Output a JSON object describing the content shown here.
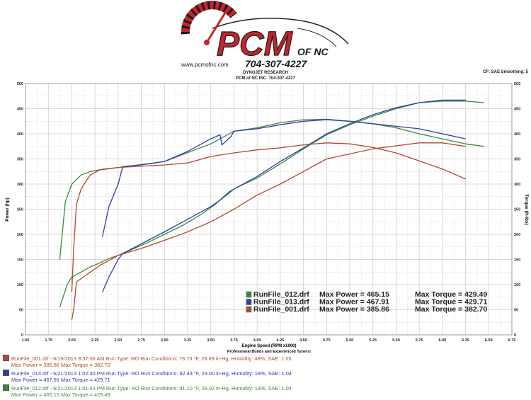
{
  "header": {
    "logo_text": "PCM",
    "logo_suffix": "OF NC",
    "phone": "704-307-4227",
    "website": "www.pcmofnc.com",
    "company": "DYNOJET RESEARCH",
    "subtitle": "PCM of NC INC. 704-307-4227",
    "right_info": "CF: SAE  Smoothing: 5"
  },
  "colors": {
    "run012": "#3a8a3a",
    "run013": "#2a3fa8",
    "run001": "#b5472e",
    "grid": "#cfcfcf",
    "frame": "#999999"
  },
  "chart_data": {
    "type": "line",
    "title": "",
    "xlabel": "Engine Speed (RPM x1000)",
    "ylabel_left": "Power (hp)",
    "ylabel_right": "Torque (ft-lbs)",
    "xlim": [
      1.5,
      6.75
    ],
    "ylim": [
      0,
      500
    ],
    "x_ticks": [
      "1.50",
      "1.75",
      "2.00",
      "2.25",
      "2.50",
      "2.75",
      "3.00",
      "3.25",
      "3.50",
      "3.75",
      "4.00",
      "4.25",
      "4.50",
      "4.75",
      "5.00",
      "5.25",
      "5.50",
      "5.75",
      "6.00",
      "6.25",
      "6.50",
      "6.75"
    ],
    "y_ticks": [
      "0",
      "50",
      "100",
      "150",
      "200",
      "250",
      "300",
      "350",
      "400",
      "450",
      "500"
    ],
    "footer_text": "Professional Builds and Experienced Tuners!",
    "grid": true,
    "legend_position": "bottom-right",
    "legend": [
      {
        "name": "RunFile_012.drf",
        "power_label": "Max Power = 465.15",
        "torque_label": "Max Torque = 429.49"
      },
      {
        "name": "RunFile_013.drf",
        "power_label": "Max Power = 467.91",
        "torque_label": "Max Torque = 429.71"
      },
      {
        "name": "RunFile_001.drf",
        "power_label": "Max Power = 385.86",
        "torque_label": "Max Torque = 382.70"
      }
    ],
    "series": [
      {
        "name": "RunFile_012.drf",
        "measure": "Power",
        "color": "#3a8a3a",
        "x": [
          1.87,
          1.95,
          2.0,
          2.1,
          2.2,
          2.3,
          2.4,
          2.5,
          2.6,
          2.8,
          3.0,
          3.2,
          3.4,
          3.55,
          3.7,
          3.8,
          4.0,
          4.25,
          4.5,
          4.75,
          5.0,
          5.25,
          5.5,
          5.75,
          6.0,
          6.25,
          6.45
        ],
        "y": [
          55,
          100,
          115,
          125,
          135,
          143,
          152,
          158,
          166,
          182,
          200,
          218,
          240,
          260,
          285,
          295,
          312,
          340,
          370,
          398,
          418,
          435,
          450,
          462,
          465,
          465,
          462
        ]
      },
      {
        "name": "RunFile_012.drf",
        "measure": "Torque",
        "color": "#3a8a3a",
        "x": [
          1.87,
          1.93,
          2.0,
          2.1,
          2.2,
          2.35,
          2.5,
          3.0,
          3.5,
          3.75,
          4.0,
          4.25,
          4.5,
          4.75,
          5.0,
          5.25,
          5.5,
          5.75,
          6.0,
          6.25,
          6.45
        ],
        "y": [
          150,
          265,
          300,
          318,
          325,
          330,
          333,
          345,
          380,
          405,
          412,
          422,
          428,
          429,
          425,
          420,
          412,
          400,
          390,
          380,
          375
        ]
      },
      {
        "name": "RunFile_013.drf",
        "measure": "Power",
        "color": "#2a3fa8",
        "x": [
          2.33,
          2.4,
          2.5,
          2.55,
          3.0,
          3.5,
          3.6,
          3.75,
          4.0,
          4.25,
          4.5,
          4.75,
          5.0,
          5.25,
          5.5,
          5.75,
          6.0,
          6.25
        ],
        "y": [
          85,
          115,
          150,
          162,
          205,
          255,
          268,
          290,
          315,
          345,
          372,
          400,
          420,
          438,
          452,
          462,
          467,
          467
        ]
      },
      {
        "name": "RunFile_013.drf",
        "measure": "Torque",
        "color": "#2a3fa8",
        "x": [
          2.33,
          2.4,
          2.5,
          2.55,
          2.75,
          3.0,
          3.25,
          3.5,
          3.6,
          3.62,
          3.72,
          3.75,
          4.0,
          4.25,
          4.5,
          4.75,
          5.0,
          5.25,
          5.5,
          5.75,
          6.0,
          6.25
        ],
        "y": [
          195,
          255,
          300,
          335,
          338,
          345,
          365,
          390,
          398,
          378,
          395,
          405,
          410,
          418,
          425,
          428,
          425,
          420,
          415,
          410,
          400,
          390
        ]
      },
      {
        "name": "RunFile_001.drf",
        "measure": "Power",
        "color": "#b5472e",
        "x": [
          2.0,
          2.02,
          2.05,
          2.1,
          2.2,
          2.3,
          2.5,
          2.75,
          3.0,
          3.25,
          3.5,
          3.75,
          4.0,
          4.25,
          4.5,
          4.75,
          5.0,
          5.25,
          5.5,
          5.75,
          6.0,
          6.25
        ],
        "y": [
          30,
          50,
          105,
          112,
          125,
          138,
          158,
          172,
          188,
          205,
          225,
          250,
          278,
          300,
          325,
          350,
          360,
          370,
          376,
          382,
          382,
          375
        ]
      },
      {
        "name": "RunFile_001.drf",
        "measure": "Torque",
        "color": "#b5472e",
        "x": [
          2.0,
          2.02,
          2.05,
          2.1,
          2.15,
          2.2,
          2.3,
          2.5,
          3.0,
          3.25,
          3.5,
          3.75,
          4.0,
          4.25,
          4.5,
          4.75,
          5.0,
          5.25,
          5.5,
          5.75,
          6.0,
          6.25
        ],
        "y": [
          85,
          170,
          260,
          290,
          305,
          318,
          328,
          333,
          338,
          342,
          355,
          362,
          368,
          372,
          378,
          382,
          380,
          373,
          362,
          346,
          330,
          310
        ]
      }
    ]
  },
  "footer_runs": [
    {
      "id": "run001",
      "line1": "RunFile_001.drf - 6/19/2013 9:37:06 AM  Run Type: RO  Run Conditions: 79.73 °F, 28.69 in-Hg,  Humidity:  48%, SAE: 1.05",
      "line2": "Max Power = 385.86  Max Torque = 382.70"
    },
    {
      "id": "run013",
      "line1": "RunFile_013.drf - 6/21/2013 1:02:30 PM  Run Type: RO  Run Conditions: 92.43 °F, 29.00 in-Hg,  Humidity:  18%, SAE: 1.04",
      "line2": "Max Power = 467.91  Max Torque = 429.71"
    },
    {
      "id": "run012",
      "line1": "RunFile_012.drf - 6/21/2013 1:01:43 PM  Run Type: RO  Run Conditions: 91.10 °F, 29.02 in-Hg,  Humidity:  18%, SAE: 1.04",
      "line2": "Max Power = 465.15  Max Torque = 429.49"
    }
  ]
}
